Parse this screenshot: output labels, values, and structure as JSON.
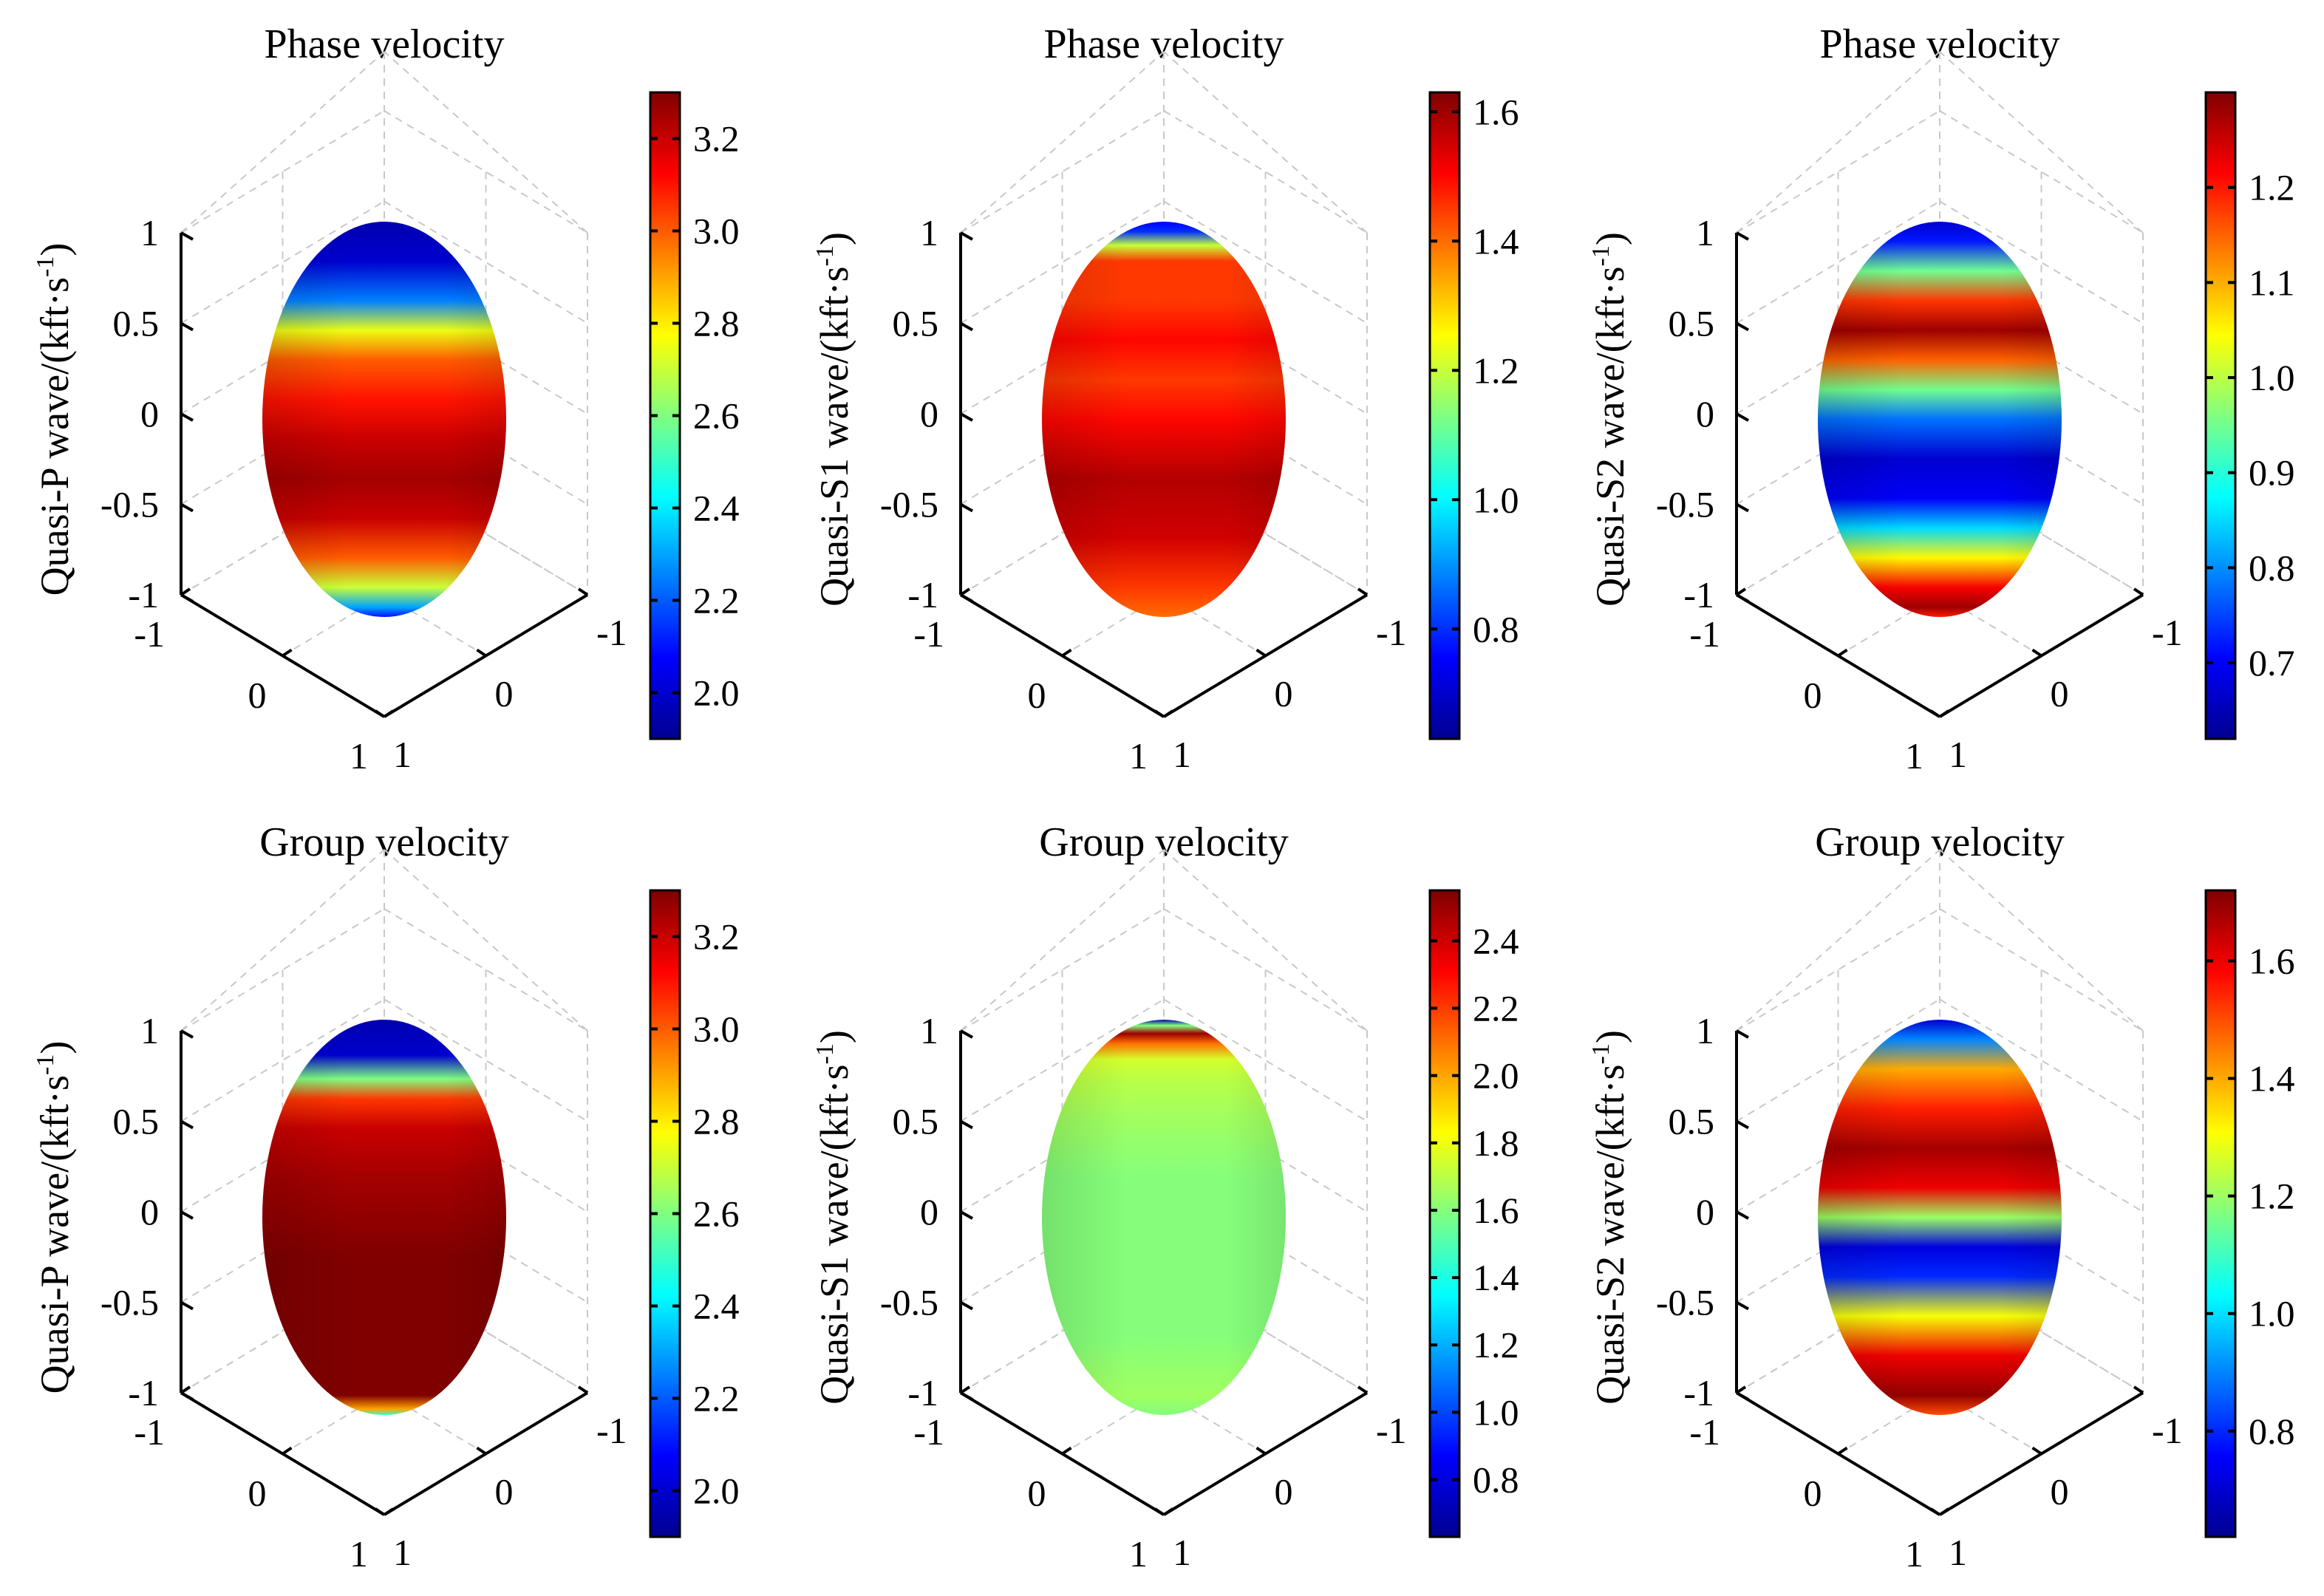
{
  "colormap": "jet",
  "jet_stops": [
    "#00008f",
    "#0000ff",
    "#0080ff",
    "#00ffff",
    "#80ff80",
    "#ffff00",
    "#ff8000",
    "#ff0000",
    "#800000"
  ],
  "axis_tick_labels": {
    "vertical": [
      "1",
      "0.5",
      "0",
      "-0.5",
      "-1"
    ],
    "left_axis": [
      "-1",
      "0",
      "1"
    ],
    "right_axis": [
      "-1",
      "0",
      "1"
    ]
  },
  "chart_data": [
    {
      "type": "surface3d",
      "title": "Phase velocity",
      "ylabel_main": "Quasi-P wave/(kft·s",
      "ylabel_sup": "-1",
      "ylabel_close": ")",
      "color_range": [
        1.9,
        3.3
      ],
      "colorbar_ticks": [
        "2.0",
        "2.2",
        "2.4",
        "2.6",
        "2.8",
        "3.0",
        "3.2"
      ],
      "colorbar_tick_values": [
        2.0,
        2.2,
        2.4,
        2.6,
        2.8,
        3.0,
        3.2
      ],
      "profile": {
        "latitude": [
          1.0,
          0.8,
          0.6,
          0.45,
          0.3,
          0.1,
          -0.1,
          -0.3,
          -0.5,
          -0.7,
          -0.85,
          -0.95,
          -1.0
        ],
        "value": [
          1.95,
          2.0,
          2.25,
          2.75,
          3.0,
          3.1,
          3.2,
          3.25,
          3.2,
          3.0,
          2.7,
          2.3,
          2.1
        ]
      }
    },
    {
      "type": "surface3d",
      "title": "Phase velocity",
      "ylabel_main": "Quasi-S1 wave/(kft·s",
      "ylabel_sup": "-1",
      "ylabel_close": ")",
      "color_range": [
        0.63,
        1.63
      ],
      "colorbar_ticks": [
        "0.8",
        "1.0",
        "1.2",
        "1.4",
        "1.6"
      ],
      "colorbar_tick_values": [
        0.8,
        1.0,
        1.2,
        1.4,
        1.6
      ],
      "profile": {
        "latitude": [
          1.0,
          0.95,
          0.88,
          0.8,
          0.6,
          0.4,
          0.2,
          0.0,
          -0.3,
          -0.6,
          -0.85,
          -1.0
        ],
        "value": [
          0.75,
          0.8,
          1.2,
          1.45,
          1.45,
          1.5,
          1.45,
          1.5,
          1.58,
          1.55,
          1.45,
          1.4
        ]
      }
    },
    {
      "type": "surface3d",
      "title": "Phase velocity",
      "ylabel_main": "Quasi-S2 wave/(kft·s",
      "ylabel_sup": "-1",
      "ylabel_close": ")",
      "color_range": [
        0.62,
        1.3
      ],
      "colorbar_ticks": [
        "0.7",
        "0.8",
        "0.9",
        "1.0",
        "1.1",
        "1.2"
      ],
      "colorbar_tick_values": [
        0.7,
        0.8,
        0.9,
        1.0,
        1.1,
        1.2
      ],
      "profile": {
        "latitude": [
          1.0,
          0.9,
          0.75,
          0.6,
          0.45,
          0.3,
          0.15,
          0.0,
          -0.2,
          -0.4,
          -0.55,
          -0.7,
          -0.85,
          -0.95,
          -1.0
        ],
        "value": [
          0.67,
          0.72,
          0.95,
          1.18,
          1.28,
          1.15,
          0.95,
          0.78,
          0.67,
          0.7,
          0.85,
          1.05,
          1.22,
          1.28,
          1.2
        ]
      }
    },
    {
      "type": "surface3d",
      "title": "Group velocity",
      "ylabel_main": "Quasi-P wave/(kft·s",
      "ylabel_sup": "-1",
      "ylabel_close": ")",
      "color_range": [
        1.9,
        3.3
      ],
      "colorbar_ticks": [
        "2.0",
        "2.2",
        "2.4",
        "2.6",
        "2.8",
        "3.0",
        "3.2"
      ],
      "colorbar_tick_values": [
        2.0,
        2.2,
        2.4,
        2.6,
        2.8,
        3.0,
        3.2
      ],
      "profile": {
        "latitude": [
          1.0,
          0.82,
          0.7,
          0.6,
          0.45,
          0.2,
          -0.2,
          -0.6,
          -0.9,
          -0.97,
          -1.0
        ],
        "value": [
          1.95,
          2.0,
          2.6,
          3.05,
          3.2,
          3.25,
          3.3,
          3.3,
          3.3,
          2.9,
          2.5
        ]
      }
    },
    {
      "type": "surface3d",
      "title": "Group velocity",
      "ylabel_main": "Quasi-S1 wave/(kft·s",
      "ylabel_sup": "-1",
      "ylabel_close": ")",
      "color_range": [
        0.63,
        2.55
      ],
      "colorbar_ticks": [
        "0.8",
        "1.0",
        "1.2",
        "1.4",
        "1.6",
        "1.8",
        "2.0",
        "2.2",
        "2.4"
      ],
      "colorbar_tick_values": [
        0.8,
        1.0,
        1.2,
        1.4,
        1.6,
        1.8,
        2.0,
        2.2,
        2.4
      ],
      "profile": {
        "latitude": [
          1.0,
          0.97,
          0.93,
          0.88,
          0.8,
          0.7,
          0.5,
          0.2,
          -0.2,
          -0.6,
          -0.9,
          -1.0
        ],
        "value": [
          0.7,
          1.6,
          2.5,
          2.1,
          1.75,
          1.7,
          1.65,
          1.6,
          1.6,
          1.6,
          1.65,
          1.6
        ]
      }
    },
    {
      "type": "surface3d",
      "title": "Group velocity",
      "ylabel_main": "Quasi-S2 wave/(kft·s",
      "ylabel_sup": "-1",
      "ylabel_close": ")",
      "color_range": [
        0.62,
        1.72
      ],
      "colorbar_ticks": [
        "0.8",
        "1.0",
        "1.2",
        "1.4",
        "1.6"
      ],
      "colorbar_tick_values": [
        0.8,
        1.0,
        1.2,
        1.4,
        1.6
      ],
      "profile": {
        "latitude": [
          1.0,
          0.9,
          0.75,
          0.55,
          0.35,
          0.15,
          0.0,
          -0.15,
          -0.3,
          -0.5,
          -0.7,
          -0.9,
          -1.0
        ],
        "value": [
          0.7,
          0.9,
          1.4,
          1.55,
          1.68,
          1.6,
          1.2,
          0.72,
          0.8,
          1.3,
          1.6,
          1.7,
          1.5
        ]
      }
    }
  ]
}
